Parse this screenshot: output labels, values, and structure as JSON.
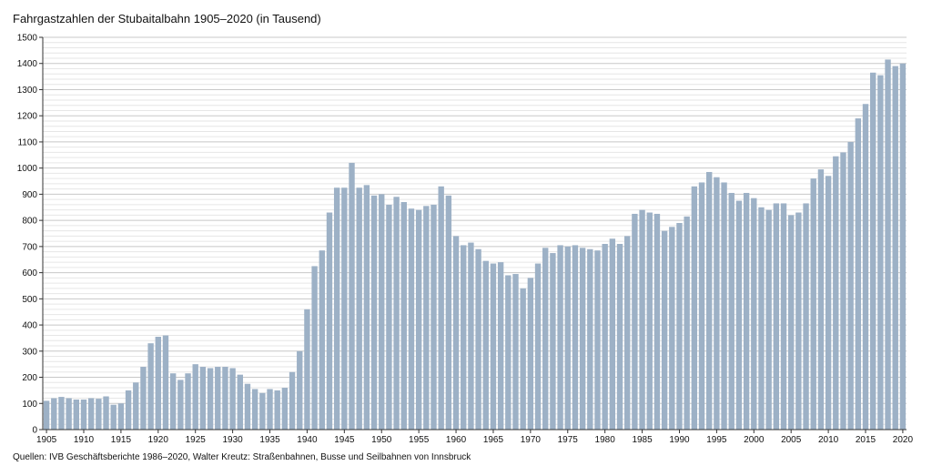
{
  "chart_data": {
    "type": "bar",
    "title": "Fahrgastzahlen der Stubaitalbahn 1905–2020 (in Tausend)",
    "source": "Quellen: IVB Geschäftsberichte 1986–2020, Walter Kreutz: Straßenbahnen, Busse und Seilbahnen von Innsbruck",
    "xlabel": "",
    "ylabel": "",
    "ylim": [
      0,
      1500
    ],
    "y_ticks": [
      0,
      100,
      200,
      300,
      400,
      500,
      600,
      700,
      800,
      900,
      1000,
      1100,
      1200,
      1300,
      1400,
      1500
    ],
    "x_tick_labels": [
      1905,
      1910,
      1915,
      1920,
      1925,
      1930,
      1935,
      1940,
      1945,
      1950,
      1955,
      1960,
      1965,
      1970,
      1975,
      1980,
      1985,
      1990,
      1995,
      2000,
      2005,
      2010,
      2015,
      2020
    ],
    "grid": true,
    "bar_color": "#9db1c6",
    "categories": [
      1905,
      1906,
      1907,
      1908,
      1909,
      1910,
      1911,
      1912,
      1913,
      1914,
      1915,
      1916,
      1917,
      1918,
      1919,
      1920,
      1921,
      1922,
      1923,
      1924,
      1925,
      1926,
      1927,
      1928,
      1929,
      1930,
      1931,
      1932,
      1933,
      1934,
      1935,
      1936,
      1937,
      1938,
      1939,
      1940,
      1941,
      1942,
      1943,
      1944,
      1945,
      1946,
      1947,
      1948,
      1949,
      1950,
      1951,
      1952,
      1953,
      1954,
      1955,
      1956,
      1957,
      1958,
      1959,
      1960,
      1961,
      1962,
      1963,
      1964,
      1965,
      1966,
      1967,
      1968,
      1969,
      1970,
      1971,
      1972,
      1973,
      1974,
      1975,
      1976,
      1977,
      1978,
      1979,
      1980,
      1981,
      1982,
      1983,
      1984,
      1985,
      1986,
      1987,
      1988,
      1989,
      1990,
      1991,
      1992,
      1993,
      1994,
      1995,
      1996,
      1997,
      1998,
      1999,
      2000,
      2001,
      2002,
      2003,
      2004,
      2005,
      2006,
      2007,
      2008,
      2009,
      2010,
      2011,
      2012,
      2013,
      2014,
      2015,
      2016,
      2017,
      2018,
      2019,
      2020
    ],
    "values": [
      110,
      120,
      125,
      120,
      115,
      115,
      120,
      118,
      127,
      95,
      100,
      150,
      180,
      240,
      330,
      355,
      360,
      215,
      190,
      215,
      250,
      240,
      235,
      240,
      240,
      235,
      210,
      175,
      155,
      140,
      155,
      150,
      160,
      220,
      300,
      460,
      625,
      685,
      830,
      925,
      925,
      1020,
      925,
      935,
      895,
      900,
      860,
      890,
      870,
      845,
      840,
      855,
      860,
      930,
      895,
      740,
      705,
      715,
      690,
      645,
      635,
      640,
      590,
      595,
      540,
      580,
      635,
      695,
      675,
      705,
      700,
      705,
      695,
      690,
      685,
      710,
      730,
      710,
      740,
      825,
      840,
      830,
      825,
      760,
      775,
      790,
      815,
      930,
      945,
      985,
      965,
      945,
      905,
      875,
      905,
      885,
      850,
      840,
      865,
      865,
      820,
      830,
      865,
      960,
      995,
      970,
      1045,
      1060,
      1100,
      1190,
      1245,
      1365,
      1355,
      1415,
      1390,
      1400
    ]
  }
}
